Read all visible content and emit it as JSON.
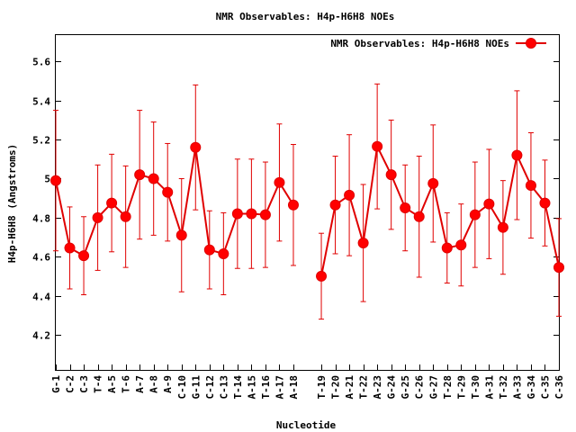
{
  "chart_data": {
    "type": "line",
    "title": "NMR Observables: H4p-H6H8 NOEs",
    "xlabel": "Nucleotide",
    "ylabel": "H4p-H6H8 (Angstroms)",
    "ylim": [
      4.02,
      5.74
    ],
    "yticks": [
      "4.2",
      "4.4",
      "4.6",
      "4.8",
      "5",
      "5.2",
      "5.4",
      "5.6"
    ],
    "ytick_values": [
      4.2,
      4.4,
      4.6,
      4.8,
      5.0,
      5.2,
      5.4,
      5.6
    ],
    "grid": false,
    "legend_position": "top-right",
    "color": "#e00000",
    "series": [
      {
        "name": "NMR Observables: H4p-H6H8 NOEs",
        "segments": [
          {
            "points": [
              {
                "label": "G-1",
                "y": 4.99,
                "err": 0.36
              },
              {
                "label": "C-2",
                "y": 4.645,
                "err": 0.21
              },
              {
                "label": "C-3",
                "y": 4.605,
                "err": 0.2
              },
              {
                "label": "T-4",
                "y": 4.8,
                "err": 0.27
              },
              {
                "label": "A-5",
                "y": 4.875,
                "err": 0.25
              },
              {
                "label": "T-6",
                "y": 4.805,
                "err": 0.26
              },
              {
                "label": "A-7",
                "y": 5.02,
                "err": 0.33
              },
              {
                "label": "A-8",
                "y": 5.0,
                "err": 0.29
              },
              {
                "label": "A-9",
                "y": 4.93,
                "err": 0.25
              },
              {
                "label": "C-10",
                "y": 4.71,
                "err": 0.29
              },
              {
                "label": "G-11",
                "y": 5.16,
                "err": 0.32
              },
              {
                "label": "C-12",
                "y": 4.635,
                "err": 0.2
              },
              {
                "label": "C-13",
                "y": 4.615,
                "err": 0.21
              },
              {
                "label": "T-14",
                "y": 4.82,
                "err": 0.28
              },
              {
                "label": "A-15",
                "y": 4.82,
                "err": 0.28
              },
              {
                "label": "T-16",
                "y": 4.815,
                "err": 0.27
              },
              {
                "label": "A-17",
                "y": 4.98,
                "err": 0.3
              },
              {
                "label": "A-18",
                "y": 4.865,
                "err": 0.31
              }
            ]
          },
          {
            "points": [
              {
                "label": "T-19",
                "y": 4.5,
                "err": 0.22
              },
              {
                "label": "T-20",
                "y": 4.865,
                "err": 0.25
              },
              {
                "label": "A-21",
                "y": 4.915,
                "err": 0.31
              },
              {
                "label": "T-22",
                "y": 4.67,
                "err": 0.3
              },
              {
                "label": "A-23",
                "y": 5.165,
                "err": 0.32
              },
              {
                "label": "G-24",
                "y": 5.02,
                "err": 0.28
              },
              {
                "label": "G-25",
                "y": 4.85,
                "err": 0.22
              },
              {
                "label": "C-26",
                "y": 4.805,
                "err": 0.31
              },
              {
                "label": "G-27",
                "y": 4.975,
                "err": 0.3
              },
              {
                "label": "T-28",
                "y": 4.645,
                "err": 0.18
              },
              {
                "label": "T-29",
                "y": 4.66,
                "err": 0.21
              },
              {
                "label": "T-30",
                "y": 4.815,
                "err": 0.27
              },
              {
                "label": "A-31",
                "y": 4.87,
                "err": 0.28
              },
              {
                "label": "T-32",
                "y": 4.75,
                "err": 0.24
              },
              {
                "label": "A-33",
                "y": 5.12,
                "err": 0.33
              },
              {
                "label": "G-34",
                "y": 4.965,
                "err": 0.27
              },
              {
                "label": "C-35",
                "y": 4.875,
                "err": 0.22
              },
              {
                "label": "C-36",
                "y": 4.545,
                "err": 0.25
              }
            ]
          }
        ]
      }
    ]
  }
}
